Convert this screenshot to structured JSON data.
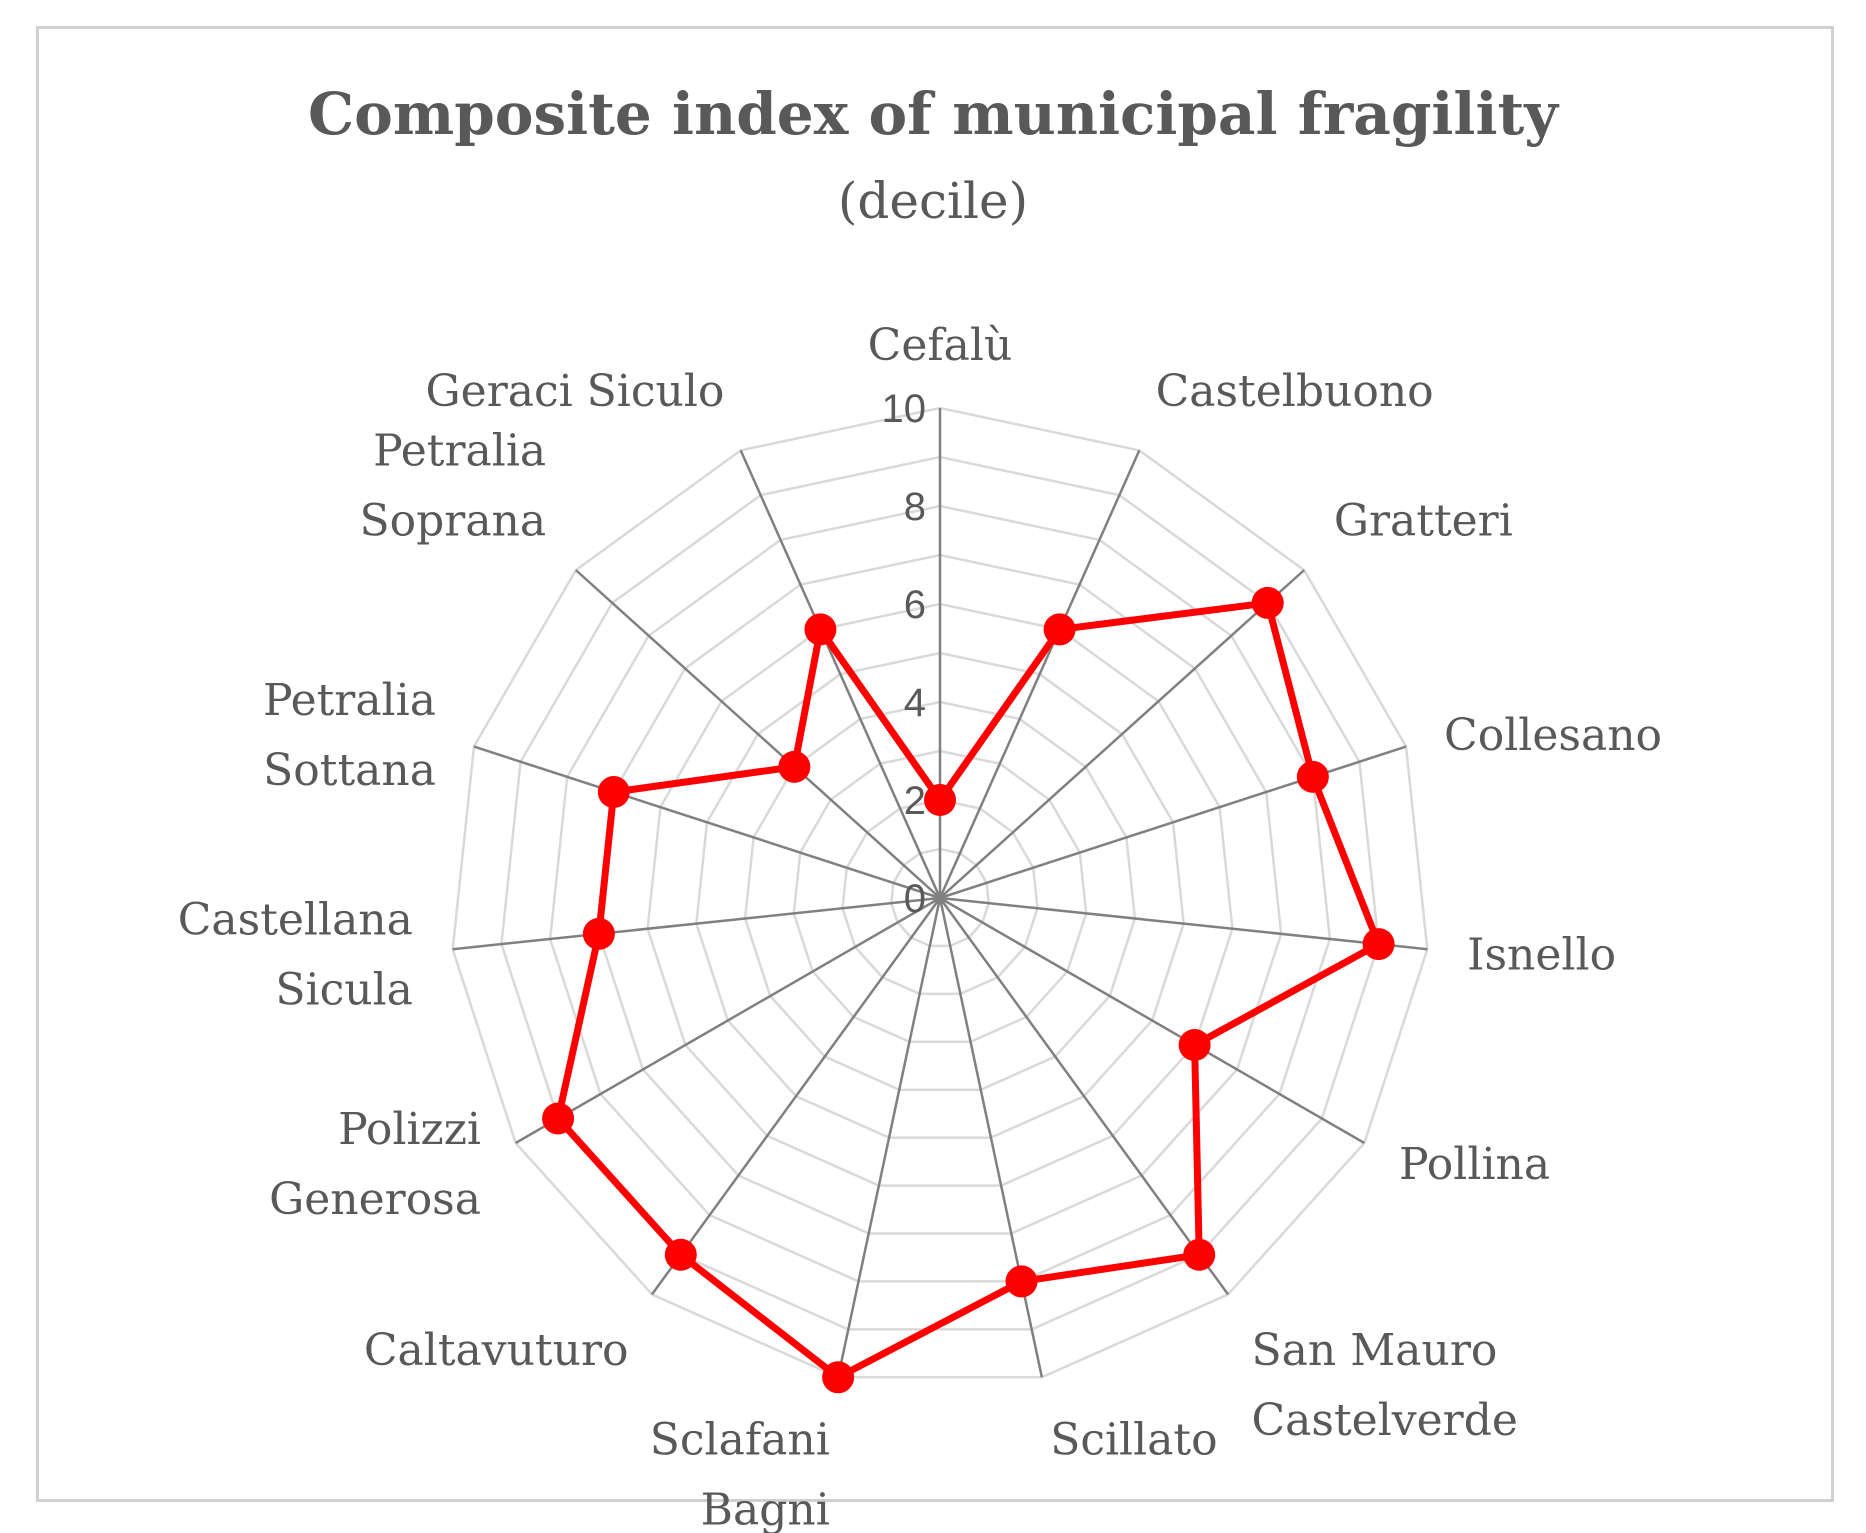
{
  "chart_data": {
    "type": "radar",
    "title": "Composite index of municipal fragility",
    "subtitle": "(decile)",
    "r_range": [
      0,
      10
    ],
    "r_ticks": [
      "0",
      "2",
      "4",
      "6",
      "8",
      "10"
    ],
    "grid": true,
    "legend": "none",
    "categories": [
      "Cefalù",
      "Castelbuono",
      "Gratteri",
      "Collesano",
      "Isnello",
      "Pollina",
      "San Mauro Castelverde",
      "Scillato",
      "Sclafani Bagni",
      "Caltavuturo",
      "Polizzi Generosa",
      "Castellana Sicula",
      "Petralia Sottana",
      "Petralia Soprana",
      "Geraci Siculo"
    ],
    "axis_label_lines": [
      [
        "Cefalù"
      ],
      [
        "Castelbuono"
      ],
      [
        "Gratteri"
      ],
      [
        "Collesano"
      ],
      [
        "Isnello"
      ],
      [
        "Pollina"
      ],
      [
        "San Mauro",
        "Castelverde"
      ],
      [
        "Scillato"
      ],
      [
        "Sclafani",
        "Bagni"
      ],
      [
        "Caltavuturo"
      ],
      [
        "Polizzi",
        "Generosa"
      ],
      [
        "Castellana",
        "Sicula"
      ],
      [
        "Petralia",
        "Sottana"
      ],
      [
        "Petralia",
        "Soprana"
      ],
      [
        "Geraci Siculo"
      ]
    ],
    "series": [
      {
        "values": [
          2,
          6,
          9,
          8,
          9,
          6,
          9,
          8,
          10,
          9,
          9,
          7,
          7,
          4,
          6
        ]
      }
    ],
    "colors": {
      "series": "#ff0000",
      "grid": "#d9d9d9",
      "spoke": "#808080",
      "text": "#595959"
    }
  }
}
